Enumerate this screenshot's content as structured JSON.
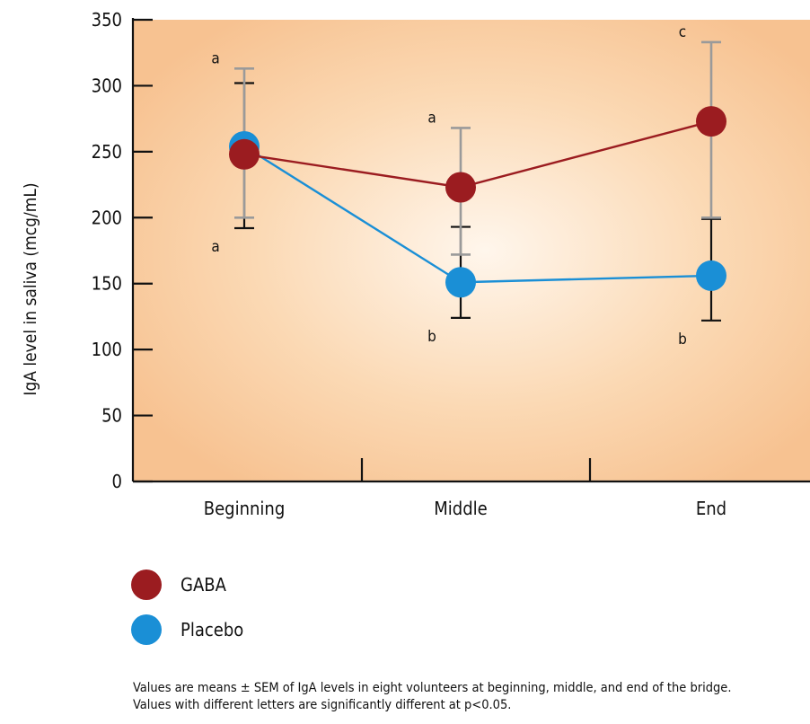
{
  "chart_data": {
    "type": "line",
    "title": "",
    "xlabel": "",
    "ylabel": "IgA level in saliva (mcg/mL)",
    "ylim": [
      0,
      350
    ],
    "yticks": [
      0,
      50,
      100,
      150,
      200,
      250,
      300,
      350
    ],
    "categories": [
      "Beginning",
      "Middle",
      "End"
    ],
    "series": [
      {
        "name": "GABA",
        "color": "#9b1c20",
        "values": [
          248,
          223,
          273
        ],
        "err_low": [
          200,
          172,
          200
        ],
        "err_high": [
          313,
          268,
          333
        ],
        "letters": [
          {
            "text": "a",
            "pos": "above"
          },
          {
            "text": "a",
            "pos": "above"
          },
          {
            "text": "c",
            "pos": "above"
          }
        ]
      },
      {
        "name": "Placebo",
        "color": "#1a8fd6",
        "values": [
          254,
          151,
          156
        ],
        "err_low": [
          192,
          124,
          122
        ],
        "err_high": [
          302,
          193,
          199
        ],
        "letters": [
          {
            "text": "a",
            "pos": "below"
          },
          {
            "text": "b",
            "pos": "below"
          },
          {
            "text": "b",
            "pos": "below"
          }
        ]
      }
    ],
    "grid": false,
    "legend_position": "bottom-left"
  },
  "notes": {
    "line1": "Values are means ± SEM of IgA levels in eight volunteers at beginning, middle, and end of the bridge.",
    "line2": "Values with different letters are significantly different at p<0.05."
  }
}
